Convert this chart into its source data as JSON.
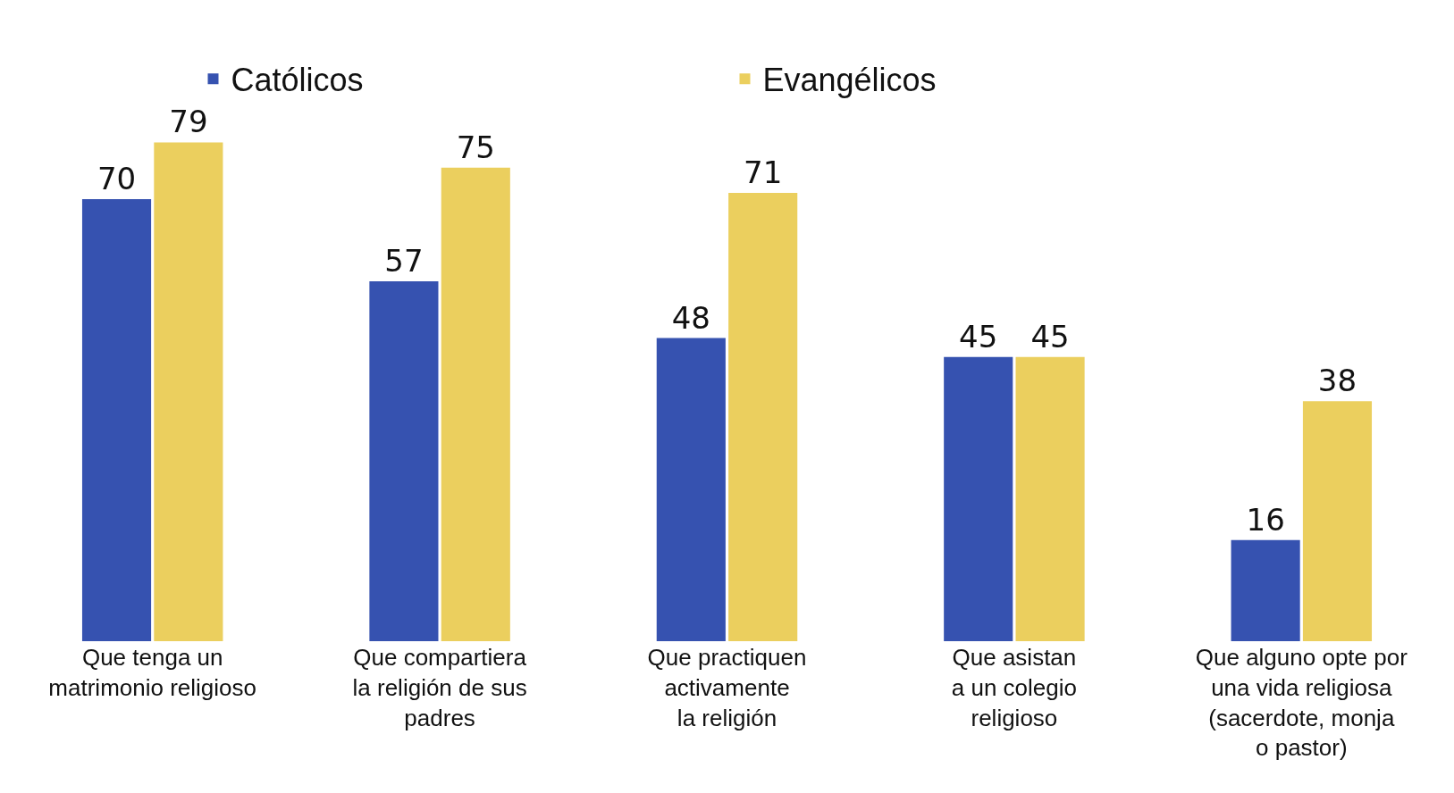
{
  "chart_data": {
    "type": "bar",
    "categories": [
      "Que tenga un\nmatrimonio religioso",
      "Que compartiera\nla religión de sus\npadres",
      "Que practiquen\nactivamente\nla religión",
      "Que asistan\na un colegio\nreligioso",
      "Que alguno opte por\nuna vida religiosa\n(sacerdote, monja\no pastor)"
    ],
    "series": [
      {
        "name": "Católicos",
        "color": "#3652b0",
        "values": [
          70,
          57,
          48,
          45,
          16
        ]
      },
      {
        "name": "Evangélicos",
        "color": "#ebcf5e",
        "values": [
          79,
          75,
          71,
          45,
          38
        ]
      }
    ],
    "data_labels": true,
    "legend": "top"
  }
}
